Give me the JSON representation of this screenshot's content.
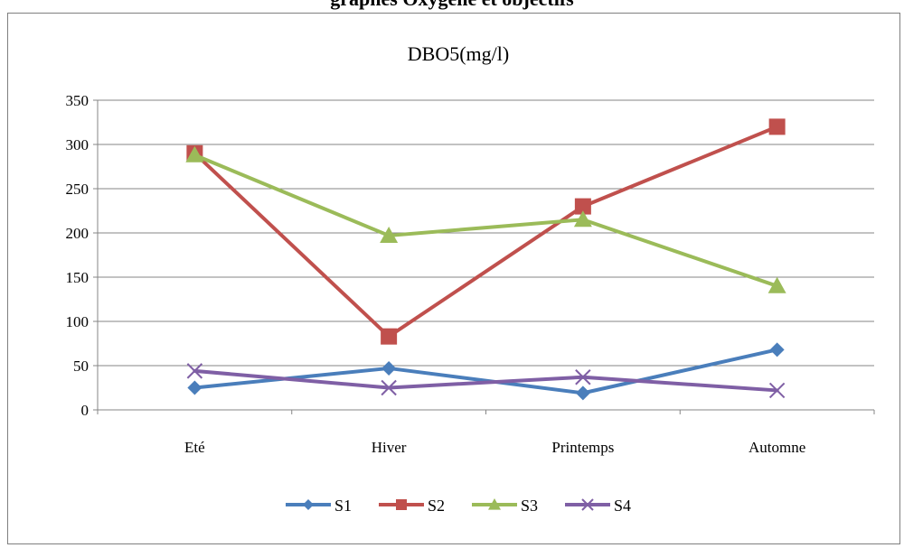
{
  "page_heading": "graphes Oxygène et objectifs",
  "chart_data": {
    "type": "line",
    "title": "DBO5(mg/l)",
    "xlabel": "",
    "ylabel": "",
    "categories": [
      "Eté",
      "Hiver",
      "Printemps",
      "Automne"
    ],
    "ylim": [
      0,
      350
    ],
    "yticks": [
      0,
      50,
      100,
      150,
      200,
      250,
      300,
      350
    ],
    "grid": true,
    "legend": "bottom",
    "series": [
      {
        "name": "S1",
        "color": "#4a7ebb",
        "marker": "diamond",
        "values": [
          25,
          47,
          19,
          68
        ]
      },
      {
        "name": "S2",
        "color": "#c0504d",
        "marker": "square",
        "values": [
          290,
          83,
          230,
          320
        ]
      },
      {
        "name": "S3",
        "color": "#9bbb59",
        "marker": "triangle",
        "values": [
          288,
          197,
          215,
          140
        ]
      },
      {
        "name": "S4",
        "color": "#7f5fa5",
        "marker": "cross",
        "values": [
          44,
          25,
          37,
          22
        ]
      }
    ]
  }
}
